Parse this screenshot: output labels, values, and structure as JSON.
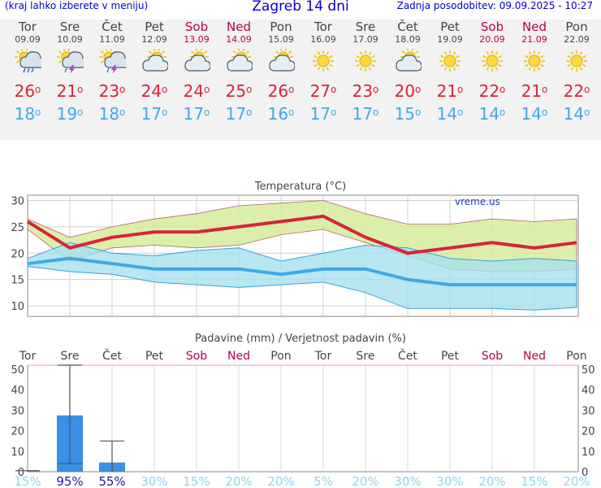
{
  "header": {
    "left_note": "(kraj lahko izberete v meniju)",
    "title": "Zagreb 14 dni",
    "updated": "Zadnja posodobitev: 09.09.2025 - 10:27"
  },
  "days": [
    {
      "name": "Tor",
      "date": "09.09",
      "weekend": false,
      "icon": "rain-sun-icon",
      "max": "26",
      "min": "18",
      "precip_prob": "15%"
    },
    {
      "name": "Sre",
      "date": "10.09",
      "weekend": false,
      "icon": "thunderstorm-sun-icon",
      "max": "21",
      "min": "19",
      "precip_prob": "95%"
    },
    {
      "name": "Čet",
      "date": "11.09",
      "weekend": false,
      "icon": "thunderstorm-sun-icon",
      "max": "23",
      "min": "18",
      "precip_prob": "55%"
    },
    {
      "name": "Pet",
      "date": "12.09",
      "weekend": false,
      "icon": "partly-cloudy-icon",
      "max": "24",
      "min": "17",
      "precip_prob": "30%"
    },
    {
      "name": "Sob",
      "date": "13.09",
      "weekend": true,
      "icon": "partly-cloudy-icon",
      "max": "24",
      "min": "17",
      "precip_prob": "15%"
    },
    {
      "name": "Ned",
      "date": "14.09",
      "weekend": true,
      "icon": "partly-cloudy-icon",
      "max": "25",
      "min": "17",
      "precip_prob": "20%"
    },
    {
      "name": "Pon",
      "date": "15.09",
      "weekend": false,
      "icon": "partly-cloudy-icon",
      "max": "26",
      "min": "16",
      "precip_prob": "20%"
    },
    {
      "name": "Tor",
      "date": "16.09",
      "weekend": false,
      "icon": "sun-icon",
      "max": "27",
      "min": "17",
      "precip_prob": "5%"
    },
    {
      "name": "Sre",
      "date": "17.09",
      "weekend": false,
      "icon": "sun-icon",
      "max": "23",
      "min": "17",
      "precip_prob": "20%"
    },
    {
      "name": "Čet",
      "date": "18.09",
      "weekend": false,
      "icon": "partly-cloudy-icon",
      "max": "20",
      "min": "15",
      "precip_prob": "30%"
    },
    {
      "name": "Pet",
      "date": "19.09",
      "weekend": false,
      "icon": "sun-icon",
      "max": "21",
      "min": "14",
      "precip_prob": "30%"
    },
    {
      "name": "Sob",
      "date": "20.09",
      "weekend": true,
      "icon": "sun-icon",
      "max": "22",
      "min": "14",
      "precip_prob": "20%"
    },
    {
      "name": "Ned",
      "date": "21.09",
      "weekend": true,
      "icon": "sun-icon",
      "max": "21",
      "min": "14",
      "precip_prob": "15%"
    },
    {
      "name": "Pon",
      "date": "22.09",
      "weekend": false,
      "icon": "sun-icon",
      "max": "22",
      "min": "14",
      "precip_prob": "20%"
    }
  ],
  "colors": {
    "max_temp": "#d9233a",
    "min_temp": "#3fa9e6",
    "max_band": "#d5ec9c",
    "min_band": "#a6e1ee",
    "overlap": "#8fd69a",
    "precip_bar": "#3a8fe6",
    "weekend": "#b8004a",
    "title_blue": "#0000cc"
  },
  "chart_data": [
    {
      "type": "line",
      "title": "Temperatura (°C)",
      "watermark": "vreme.us",
      "ylim": [
        8,
        31
      ],
      "yticks": [
        "30",
        "25",
        "20",
        "15",
        "10"
      ],
      "series": [
        {
          "values": [
            26,
            21,
            23,
            24,
            24,
            25,
            26,
            27,
            23,
            20,
            21,
            22,
            21,
            22
          ]
        },
        {
          "values": [
            18,
            19,
            18,
            17,
            17,
            17,
            16,
            17,
            17,
            15,
            14,
            14,
            14,
            14
          ]
        }
      ],
      "max_band": {
        "upper": [
          26.5,
          23,
          25,
          26.5,
          27.5,
          29,
          29.5,
          30,
          27.5,
          25.5,
          25.5,
          26.5,
          26,
          26.5
        ],
        "lower": [
          24.5,
          18.5,
          21,
          21.5,
          21,
          21.5,
          23.5,
          24.5,
          22,
          19.5,
          17,
          16.5,
          16.5,
          17
        ]
      },
      "min_band": {
        "upper": [
          19,
          22,
          20,
          19.5,
          20.5,
          21,
          18.5,
          20,
          21.5,
          21,
          19,
          18.5,
          19,
          18.5
        ],
        "lower": [
          17.5,
          16.5,
          16,
          14.5,
          14,
          13.5,
          14,
          14.5,
          12.5,
          9.5,
          9.5,
          9.5,
          9.2,
          9.7
        ]
      }
    },
    {
      "type": "bar",
      "title": "Padavine (mm) / Verjetnost padavin (%)",
      "categories": [
        "Tor",
        "Sre",
        "Čet",
        "Pet",
        "Sob",
        "Ned",
        "Pon",
        "Tor",
        "Sre",
        "Čet",
        "Pet",
        "Sob",
        "Ned",
        "Pon"
      ],
      "ylim": [
        0,
        52
      ],
      "yticks": [
        "50",
        "40",
        "30",
        "20",
        "10",
        "0"
      ],
      "values": [
        0.3,
        27.5,
        4.5,
        0,
        0,
        0,
        0,
        0,
        0,
        0,
        0,
        0,
        0,
        0
      ],
      "error_high": [
        0.5,
        52,
        15,
        0,
        0,
        0,
        0,
        0,
        0,
        0,
        0,
        0,
        0,
        0
      ],
      "error_low": [
        0,
        4,
        0,
        0,
        0,
        0,
        0,
        0,
        0,
        0,
        0,
        0,
        0,
        0
      ],
      "probabilities": [
        "15%",
        "95%",
        "55%",
        "30%",
        "15%",
        "20%",
        "20%",
        "5%",
        "20%",
        "30%",
        "30%",
        "20%",
        "15%",
        "20%"
      ]
    }
  ]
}
